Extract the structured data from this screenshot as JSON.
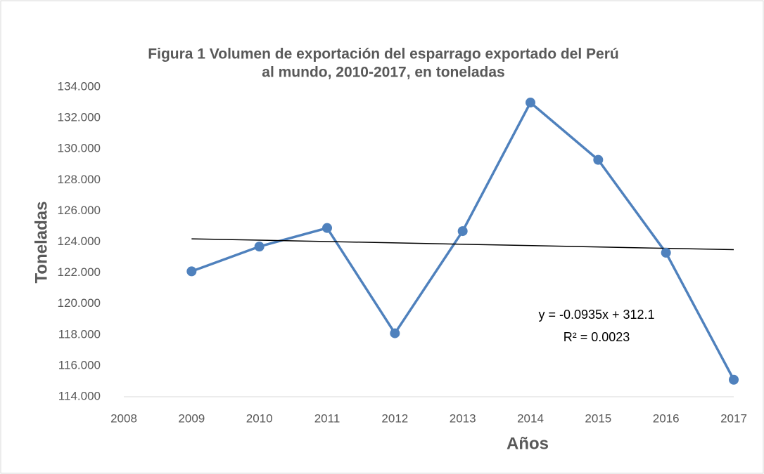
{
  "chart_data": {
    "type": "line",
    "title": [
      "Figura 1 Volumen de exportación del esparrago exportado del Perú",
      "al mundo, 2010-2017, en toneladas"
    ],
    "x_label": "Años",
    "y_label": "Toneladas",
    "x": [
      2009,
      2010,
      2011,
      2012,
      2013,
      2014,
      2015,
      2016,
      2017
    ],
    "series": [
      {
        "color": "#4f81bd",
        "values": [
          122.1,
          123.7,
          124.9,
          118.1,
          124.7,
          133.0,
          129.3,
          123.3,
          115.1
        ]
      }
    ],
    "xlim": [
      2008,
      2017
    ],
    "xticks": [
      2008,
      2009,
      2010,
      2011,
      2012,
      2013,
      2014,
      2015,
      2016,
      2017
    ],
    "ylim": [
      114,
      134
    ],
    "yticks": [
      {
        "value": 114,
        "label": "114.000"
      },
      {
        "value": 116,
        "label": "116.000"
      },
      {
        "value": 118,
        "label": "118.000"
      },
      {
        "value": 120,
        "label": "120.000"
      },
      {
        "value": 122,
        "label": "122.000"
      },
      {
        "value": 124,
        "label": "124.000"
      },
      {
        "value": 126,
        "label": "126.000"
      },
      {
        "value": 128,
        "label": "128.000"
      },
      {
        "value": 130,
        "label": "130.000"
      },
      {
        "value": 132,
        "label": "132.000"
      },
      {
        "value": 134,
        "label": "134.000"
      }
    ],
    "grid": false,
    "trendline": {
      "equation": "y = -0.0935x + 312.1",
      "r2": "R² = 0.0023",
      "x": [
        2009,
        2017
      ],
      "values": [
        124.2,
        123.5
      ],
      "color": "#000000"
    }
  }
}
